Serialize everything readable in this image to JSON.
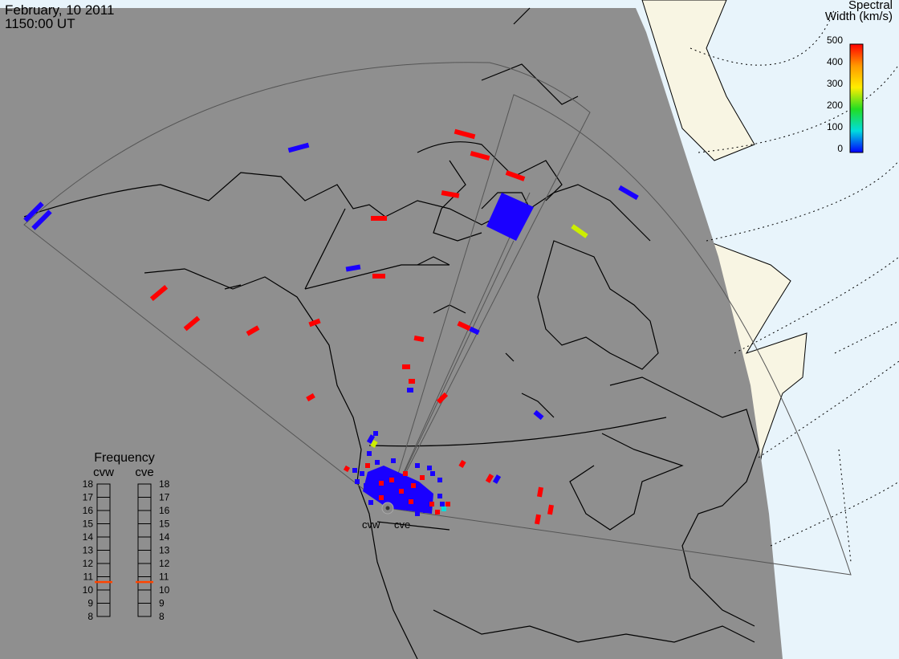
{
  "header": {
    "date": "February, 10 2011",
    "time": "1150:00 UT"
  },
  "colorbar": {
    "title_line1": "Spectral",
    "title_line2": "Width (km/s)",
    "ticks": [
      "500",
      "400",
      "300",
      "200",
      "100",
      "0"
    ],
    "colors": [
      "#ff0000",
      "#ff9900",
      "#ffee00",
      "#22dd22",
      "#00dddd",
      "#0000ff"
    ]
  },
  "frequency_panel": {
    "title": "Frequency",
    "left_label": "cvw",
    "right_label": "cve",
    "scale": [
      "18",
      "17",
      "16",
      "15",
      "14",
      "13",
      "12",
      "11",
      "10",
      "9",
      "8"
    ],
    "cvw_value": 10.6,
    "cve_value": 10.6
  },
  "radars": [
    {
      "code": "cvw"
    },
    {
      "code": "cve"
    }
  ],
  "colors": {
    "night": "#8f8f8f",
    "ocean_day": "#e8f4fb",
    "land_day": "#f8f5e3",
    "fov": "#555555",
    "high_width": "#ff0000",
    "low_width": "#1a00ff",
    "medium_width": "#ccee00"
  }
}
